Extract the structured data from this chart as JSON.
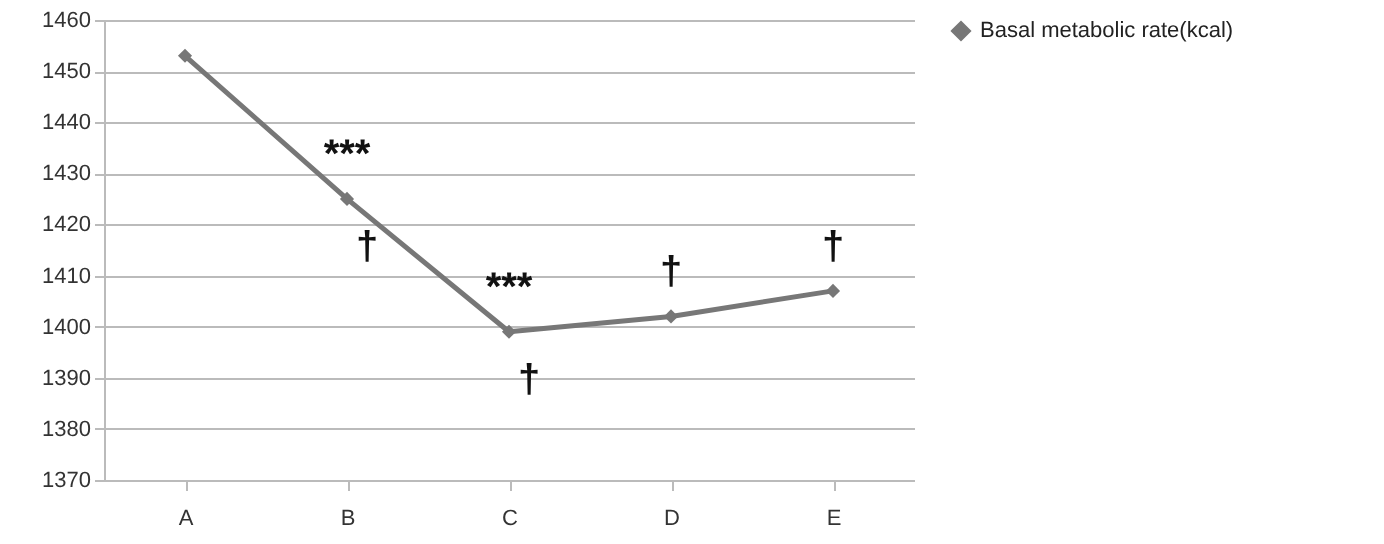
{
  "chart_data": {
    "type": "line",
    "categories": [
      "A",
      "B",
      "C",
      "D",
      "E"
    ],
    "series": [
      {
        "name": "Basal metabolic rate(kcal)",
        "color": "#777777",
        "values": [
          1453,
          1425,
          1399,
          1402,
          1407
        ]
      }
    ],
    "ylim": [
      1370,
      1460
    ],
    "yticks": [
      1370,
      1380,
      1390,
      1400,
      1410,
      1420,
      1430,
      1440,
      1450,
      1460
    ],
    "grid": "y",
    "legend": "top right",
    "marker": "diamond",
    "line_style": "solid",
    "annotations": [
      {
        "text": "***",
        "x": "B",
        "y": 1425
      },
      {
        "text": "†",
        "x": "B",
        "y": 1425
      },
      {
        "text": "***",
        "x": "C",
        "y": 1399
      },
      {
        "text": "†",
        "x": "C",
        "y": 1399
      },
      {
        "text": "†",
        "x": "D",
        "y": 1402
      },
      {
        "text": "†",
        "x": "E",
        "y": 1407
      }
    ]
  }
}
